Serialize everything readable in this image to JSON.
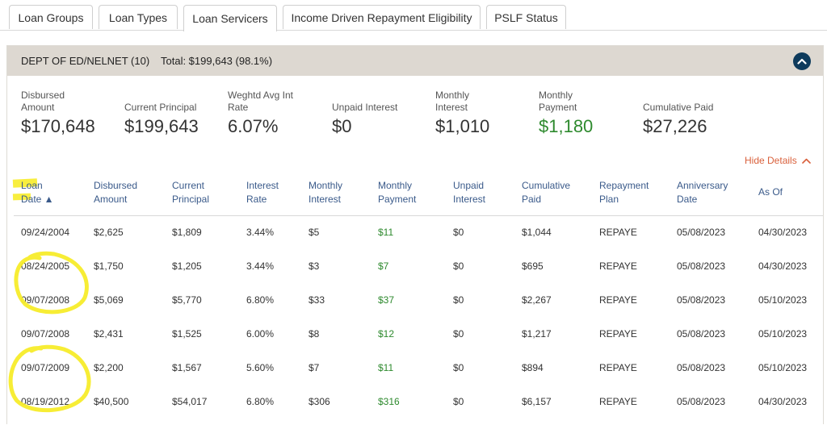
{
  "tabs": [
    {
      "label": "Loan Groups",
      "active": false
    },
    {
      "label": "Loan Types",
      "active": false
    },
    {
      "label": "Loan Servicers",
      "active": true
    },
    {
      "label": "Income Driven Repayment Eligibility",
      "active": false
    },
    {
      "label": "PSLF Status",
      "active": false
    }
  ],
  "group": {
    "name": "DEPT OF ED/NELNET (10)",
    "total": "Total: $199,643 (98.1%)"
  },
  "summary": [
    {
      "label": "Disbursed Amount",
      "value": "$170,648"
    },
    {
      "label": "Current Principal",
      "value": "$199,643"
    },
    {
      "label": "Weghtd Avg Int Rate",
      "value": "6.07%"
    },
    {
      "label": "Unpaid Interest",
      "value": "$0"
    },
    {
      "label": "Monthly Interest",
      "value": "$1,010"
    },
    {
      "label": "Monthly Payment",
      "value": "$1,180"
    },
    {
      "label": "Cumulative Paid",
      "value": "$27,226"
    }
  ],
  "hide_details_label": "Hide Details",
  "table": {
    "columns": [
      "Loan Date ▲",
      "Disbursed Amount",
      "Current Principal",
      "Interest Rate",
      "Monthly Interest",
      "Monthly Payment",
      "Unpaid Interest",
      "Cumulative Paid",
      "Repayment Plan",
      "Anniversary Date",
      "As Of"
    ],
    "rows": [
      [
        "09/24/2004",
        "$2,625",
        "$1,809",
        "3.44%",
        "$5",
        "$11",
        "$0",
        "$1,044",
        "REPAYE",
        "05/08/2023",
        "04/30/2023"
      ],
      [
        "08/24/2005",
        "$1,750",
        "$1,205",
        "3.44%",
        "$3",
        "$7",
        "$0",
        "$695",
        "REPAYE",
        "05/08/2023",
        "04/30/2023"
      ],
      [
        "09/07/2008",
        "$5,069",
        "$5,770",
        "6.80%",
        "$33",
        "$37",
        "$0",
        "$2,267",
        "REPAYE",
        "05/08/2023",
        "05/10/2023"
      ],
      [
        "09/07/2008",
        "$2,431",
        "$1,525",
        "6.00%",
        "$8",
        "$12",
        "$0",
        "$1,217",
        "REPAYE",
        "05/08/2023",
        "05/10/2023"
      ],
      [
        "09/07/2009",
        "$2,200",
        "$1,567",
        "5.60%",
        "$7",
        "$11",
        "$0",
        "$894",
        "REPAYE",
        "05/08/2023",
        "05/10/2023"
      ],
      [
        "08/19/2012",
        "$40,500",
        "$54,017",
        "6.80%",
        "$306",
        "$316",
        "$0",
        "$6,157",
        "REPAYE",
        "05/08/2023",
        "04/30/2023"
      ]
    ]
  },
  "colors": {
    "accent_blue": "#0e3b5c",
    "header_bg": "#ddd8d1",
    "column_header": "#3a5a8a",
    "payment_green": "#2e8a2e",
    "hide_details": "#d9603b",
    "highlighter": "#f7ec2a"
  },
  "icons": {
    "collapse": "chevron-up-icon",
    "hide_details": "chevron-up-icon"
  }
}
